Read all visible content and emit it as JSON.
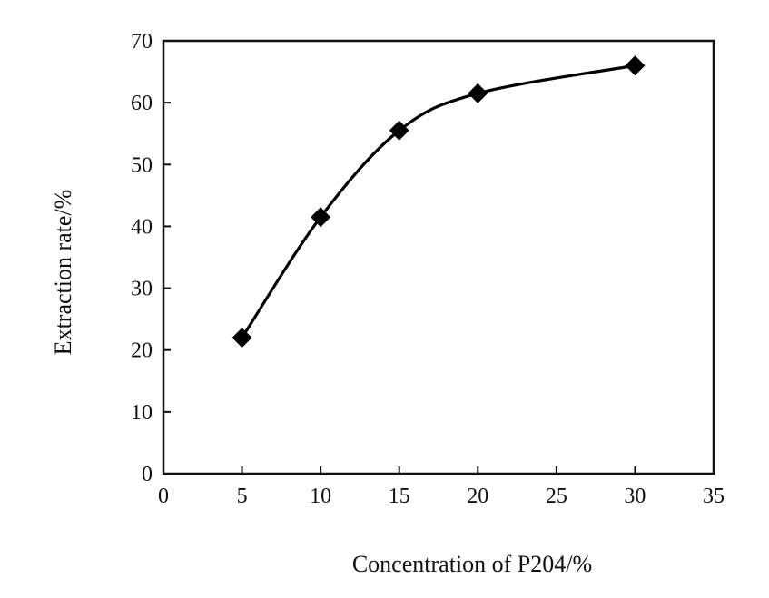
{
  "chart_data": {
    "type": "line",
    "title": "",
    "xlabel": "Concentration of P204/%",
    "ylabel": "Extraction rate/%",
    "xlim": [
      0,
      35
    ],
    "ylim": [
      0,
      70
    ],
    "x_ticks": [
      "0",
      "5",
      "10",
      "15",
      "20",
      "25",
      "30",
      "35"
    ],
    "y_ticks": [
      "0",
      "10",
      "20",
      "30",
      "40",
      "50",
      "60",
      "70"
    ],
    "grid": false,
    "legend": "none",
    "line_color": "#000000",
    "marker": "diamond",
    "series": [
      {
        "x": [
          5,
          10,
          15,
          20,
          30
        ],
        "y": [
          22,
          41.5,
          55.5,
          61.5,
          66
        ]
      }
    ]
  }
}
